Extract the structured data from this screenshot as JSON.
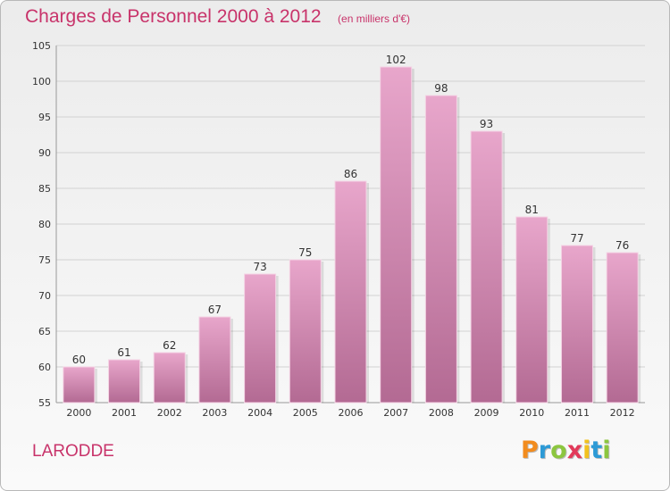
{
  "chart_data": {
    "type": "bar",
    "title": "Charges de Personnel 2000 à 2012",
    "subtitle": "(en milliers d'€)",
    "categories": [
      "2000",
      "2001",
      "2002",
      "2003",
      "2004",
      "2005",
      "2006",
      "2007",
      "2008",
      "2009",
      "2010",
      "2011",
      "2012"
    ],
    "values": [
      60,
      61,
      62,
      67,
      73,
      75,
      86,
      102,
      98,
      93,
      81,
      77,
      76
    ],
    "ylim": [
      55,
      105
    ],
    "yticks": [
      55,
      60,
      65,
      70,
      75,
      80,
      85,
      90,
      95,
      100,
      105
    ],
    "grid": true,
    "bar_color": "#c9699a",
    "title_color": "#c8336a"
  },
  "footer": {
    "commune": "LARODDE"
  },
  "logo": {
    "letters": [
      "P",
      "r",
      "o",
      "x",
      "i",
      "t",
      "i"
    ],
    "colors": [
      "#f28c1e",
      "#2d9ad6",
      "#8cc63f",
      "#e23a5a",
      "#f2c21e",
      "#2d9ad6",
      "#8cc63f"
    ]
  }
}
